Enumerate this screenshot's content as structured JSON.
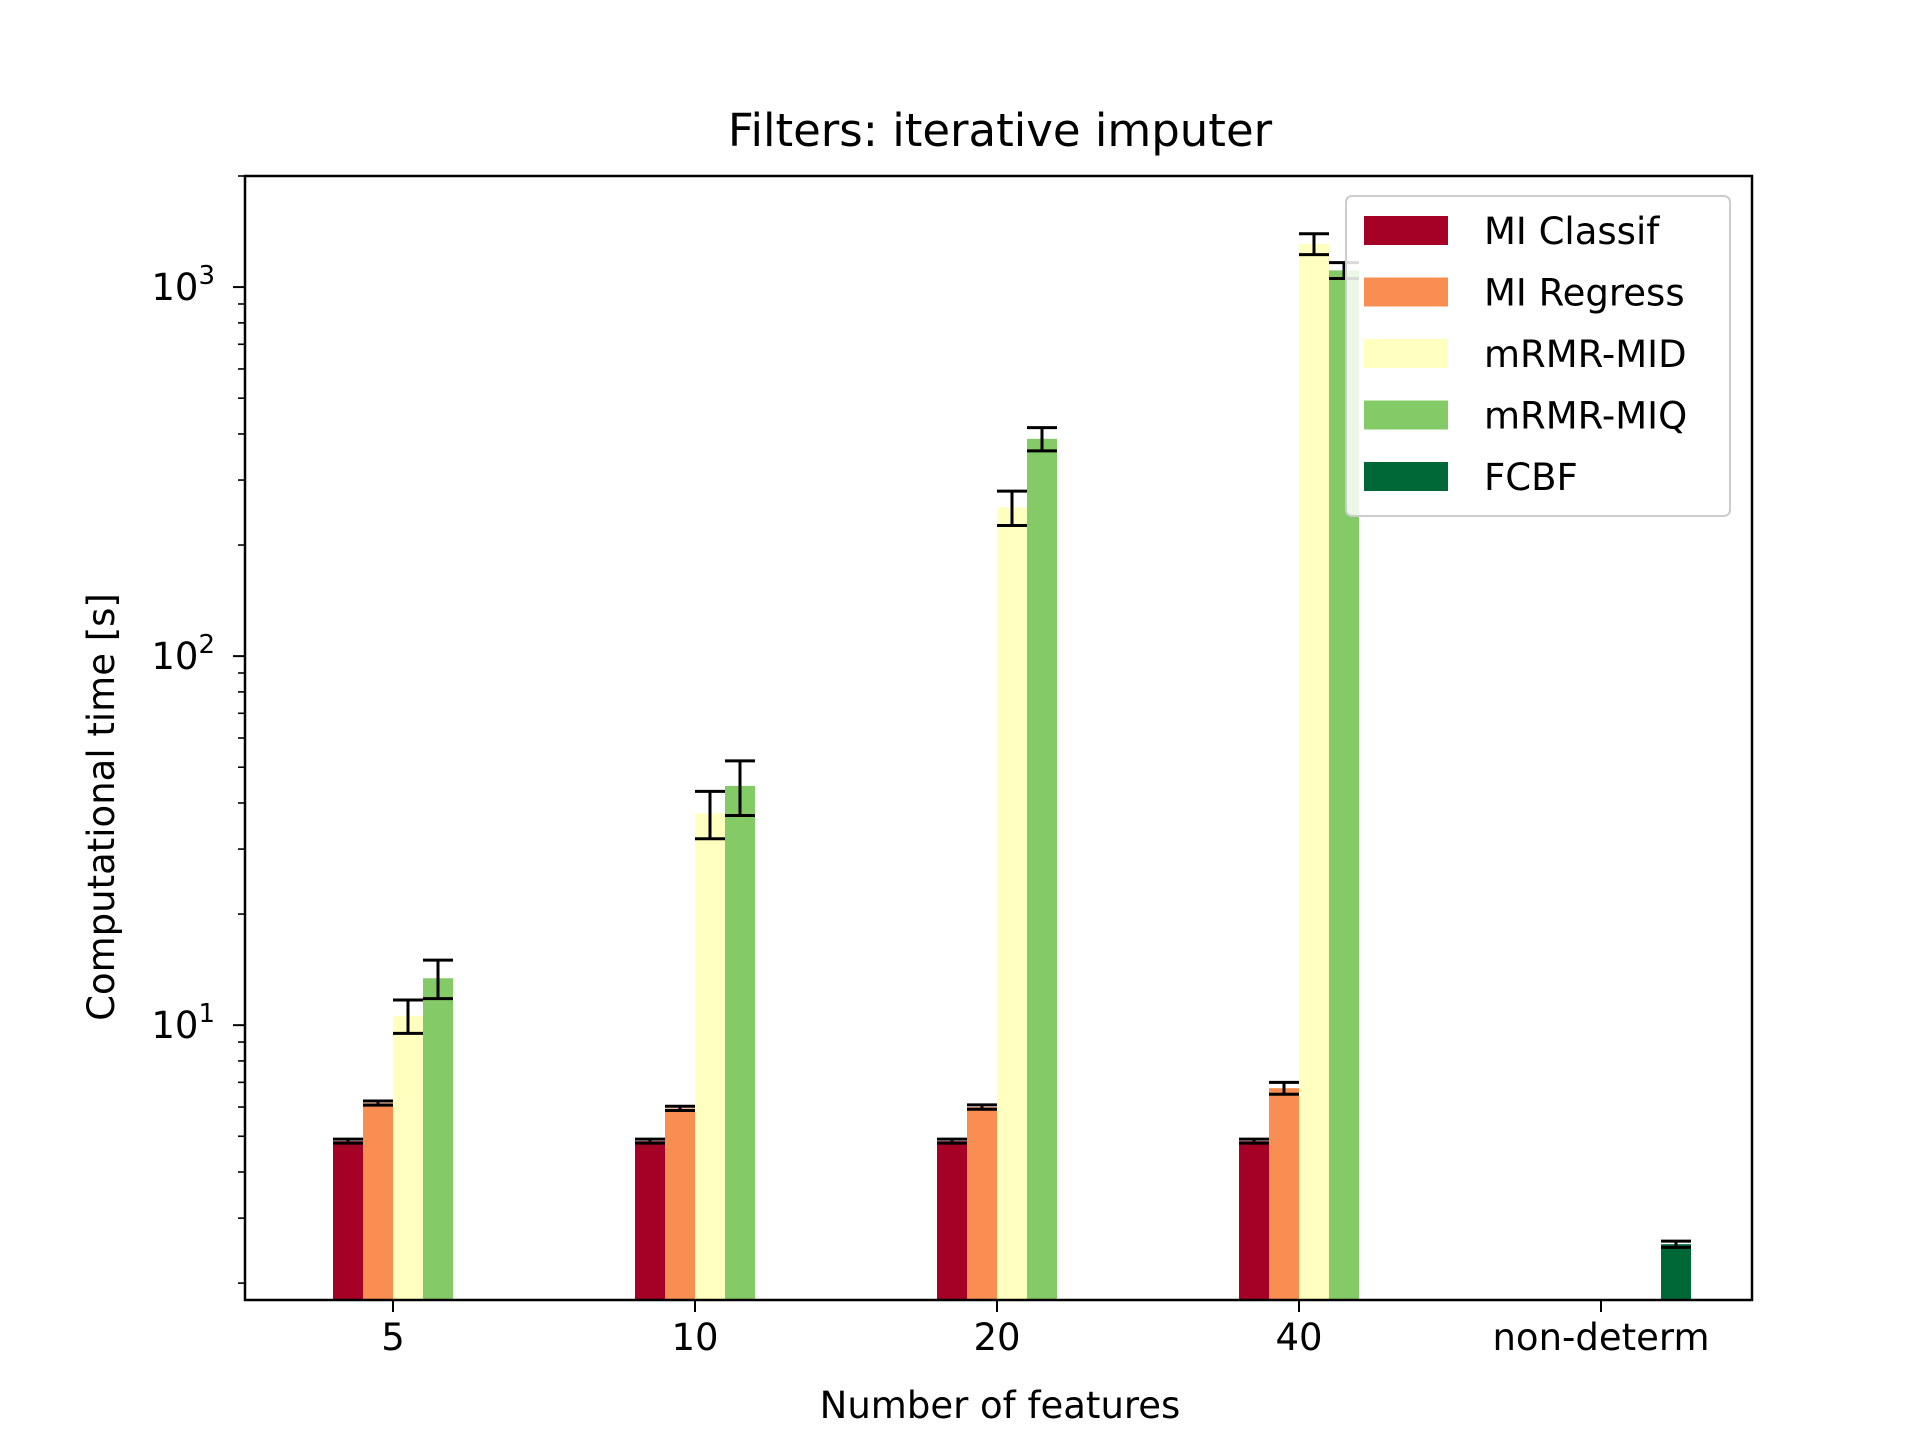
{
  "chart_data": {
    "type": "bar",
    "title": "Filters: iterative imputer",
    "xlabel": "Number of features",
    "ylabel": "Computational time [s]",
    "yscale": "log",
    "ylim": [
      1.8,
      2000
    ],
    "yticks": [
      {
        "value": 10,
        "base": "10",
        "exp": "1"
      },
      {
        "value": 100,
        "base": "10",
        "exp": "2"
      },
      {
        "value": 1000,
        "base": "10",
        "exp": "3"
      }
    ],
    "categories": [
      "5",
      "10",
      "20",
      "40",
      "non-determ"
    ],
    "legend_position": "top-right",
    "series": [
      {
        "name": "MI Classif",
        "color": "#a50026",
        "values": [
          4.85,
          4.85,
          4.85,
          4.85,
          null
        ],
        "errors": [
          0.06,
          0.06,
          0.06,
          0.06,
          null
        ]
      },
      {
        "name": "MI Regress",
        "color": "#f98e52",
        "values": [
          6.15,
          5.95,
          6.0,
          6.75,
          null
        ],
        "errors": [
          0.08,
          0.08,
          0.08,
          0.25,
          null
        ]
      },
      {
        "name": "mRMR-MID",
        "color": "#ffffbf",
        "values": [
          10.6,
          37.5,
          253,
          1310,
          null
        ],
        "errors": [
          1.1,
          5.5,
          27,
          85,
          null
        ]
      },
      {
        "name": "mRMR-MIQ",
        "color": "#84ca66",
        "values": [
          13.4,
          44.5,
          388,
          1110,
          null
        ],
        "errors": [
          1.6,
          7.5,
          28,
          55,
          null
        ]
      },
      {
        "name": "FCBF",
        "color": "#006837",
        "values": [
          null,
          null,
          null,
          null,
          2.55
        ],
        "errors": [
          null,
          null,
          null,
          null,
          0.05
        ]
      }
    ]
  }
}
